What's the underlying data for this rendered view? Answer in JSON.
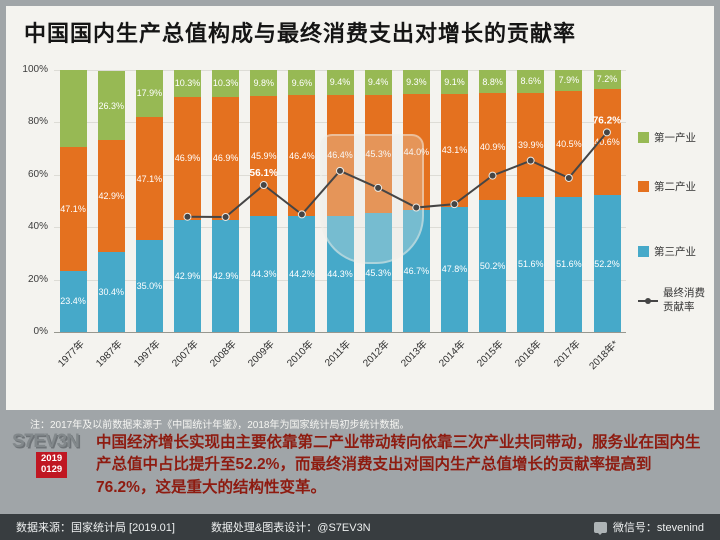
{
  "title": "中国国内生产总值构成与最终消费支出对增长的贡献率",
  "note": "注：2017年及以前数据来源于《中国统计年鉴》，2018年为国家统计局初步统计数据。",
  "summary": "中国经济增长实现由主要依靠第二产业带动转向依靠三次产业共同带动，服务业在国内生产总值中占比提升至52.2%，而最终消费支出对国内生产总值增长的贡献率提高到76.2%，这是重大的结构性变革。",
  "logo": {
    "monogram": "S7EV3N",
    "badge_line1": "2019",
    "badge_line2": "0129"
  },
  "footer": {
    "source": "数据来源：国家统计局 [2019.01]",
    "design": "数据处理&图表设计：@S7EV3N",
    "wechat": "微信号：stevenind"
  },
  "colors": {
    "page_bg": "#a0a5a8",
    "panel_bg": "#f4f3ef",
    "primary_green": "#97b954",
    "secondary_orange": "#e4711f",
    "tertiary_blue": "#46a9c9",
    "line_dark": "#454545",
    "accent_red": "#c01722",
    "summary_text": "#8e1b10",
    "footer_bg": "#383d40"
  },
  "chart_data": {
    "type": "bar",
    "subtype": "stacked-bar-with-line",
    "categories": [
      "1977年",
      "1987年",
      "1997年",
      "2007年",
      "2008年",
      "2009年",
      "2010年",
      "2011年",
      "2012年",
      "2013年",
      "2014年",
      "2015年",
      "2016年",
      "2017年",
      "2018年*"
    ],
    "y_ticks": [
      0,
      20,
      40,
      60,
      80,
      100
    ],
    "y_tick_labels": [
      "0%",
      "20%",
      "40%",
      "60%",
      "80%",
      "100%"
    ],
    "ylim": [
      0,
      100
    ],
    "grid": true,
    "series": [
      {
        "name": "第三产业",
        "color": "#46a9c9",
        "values": [
          23.4,
          30.4,
          35.0,
          42.9,
          42.9,
          44.3,
          44.2,
          44.3,
          45.3,
          46.7,
          47.8,
          50.2,
          51.6,
          51.6,
          52.2
        ],
        "labels": [
          "23.4%",
          "30.4%",
          "35.0%",
          "42.9%",
          "42.9%",
          "44.3%",
          "44.2%",
          "44.3%",
          "45.3%",
          "46.7%",
          "47.8%",
          "50.2%",
          "51.6%",
          "51.6%",
          "52.2%"
        ]
      },
      {
        "name": "第二产业",
        "color": "#e4711f",
        "values": [
          47.1,
          42.9,
          47.1,
          46.9,
          46.9,
          45.9,
          46.4,
          46.4,
          45.3,
          44.0,
          43.1,
          40.9,
          39.9,
          40.5,
          40.6
        ],
        "labels": [
          "47.1%",
          "42.9%",
          "47.1%",
          "46.9%",
          "46.9%",
          "45.9%",
          "46.4%",
          "46.4%",
          "45.3%",
          "44.0%",
          "43.1%",
          "40.9%",
          "39.9%",
          "40.5%",
          "40.6%"
        ]
      },
      {
        "name": "第一产业",
        "color": "#97b954",
        "values": [
          29.5,
          26.3,
          17.9,
          10.3,
          10.3,
          9.8,
          9.6,
          9.4,
          9.4,
          9.3,
          9.1,
          8.8,
          8.6,
          7.9,
          7.2
        ],
        "labels": [
          "",
          "26.3%",
          "17.9%",
          "10.3%",
          "10.3%",
          "9.8%",
          "9.6%",
          "9.4%",
          "9.4%",
          "9.3%",
          "9.1%",
          "8.8%",
          "8.6%",
          "7.9%",
          "7.2%"
        ]
      }
    ],
    "line": {
      "name": "最终消费贡献率",
      "color": "#454545",
      "start_index": 3,
      "values": [
        44.0,
        43.9,
        56.1,
        44.9,
        61.5,
        55.0,
        47.5,
        48.8,
        59.7,
        65.4,
        58.8,
        76.2
      ],
      "point_labels": [
        "",
        "",
        "56.1%",
        "",
        "",
        "",
        "",
        "",
        "",
        "",
        "",
        "76.2%"
      ]
    },
    "legend": [
      {
        "type": "swatch",
        "label": "第一产业",
        "color": "#97b954"
      },
      {
        "type": "swatch",
        "label": "第二产业",
        "color": "#e4711f"
      },
      {
        "type": "swatch",
        "label": "第三产业",
        "color": "#46a9c9"
      },
      {
        "type": "line",
        "label_lines": [
          "最终消费",
          "贡献率"
        ],
        "color": "#454545"
      }
    ]
  }
}
